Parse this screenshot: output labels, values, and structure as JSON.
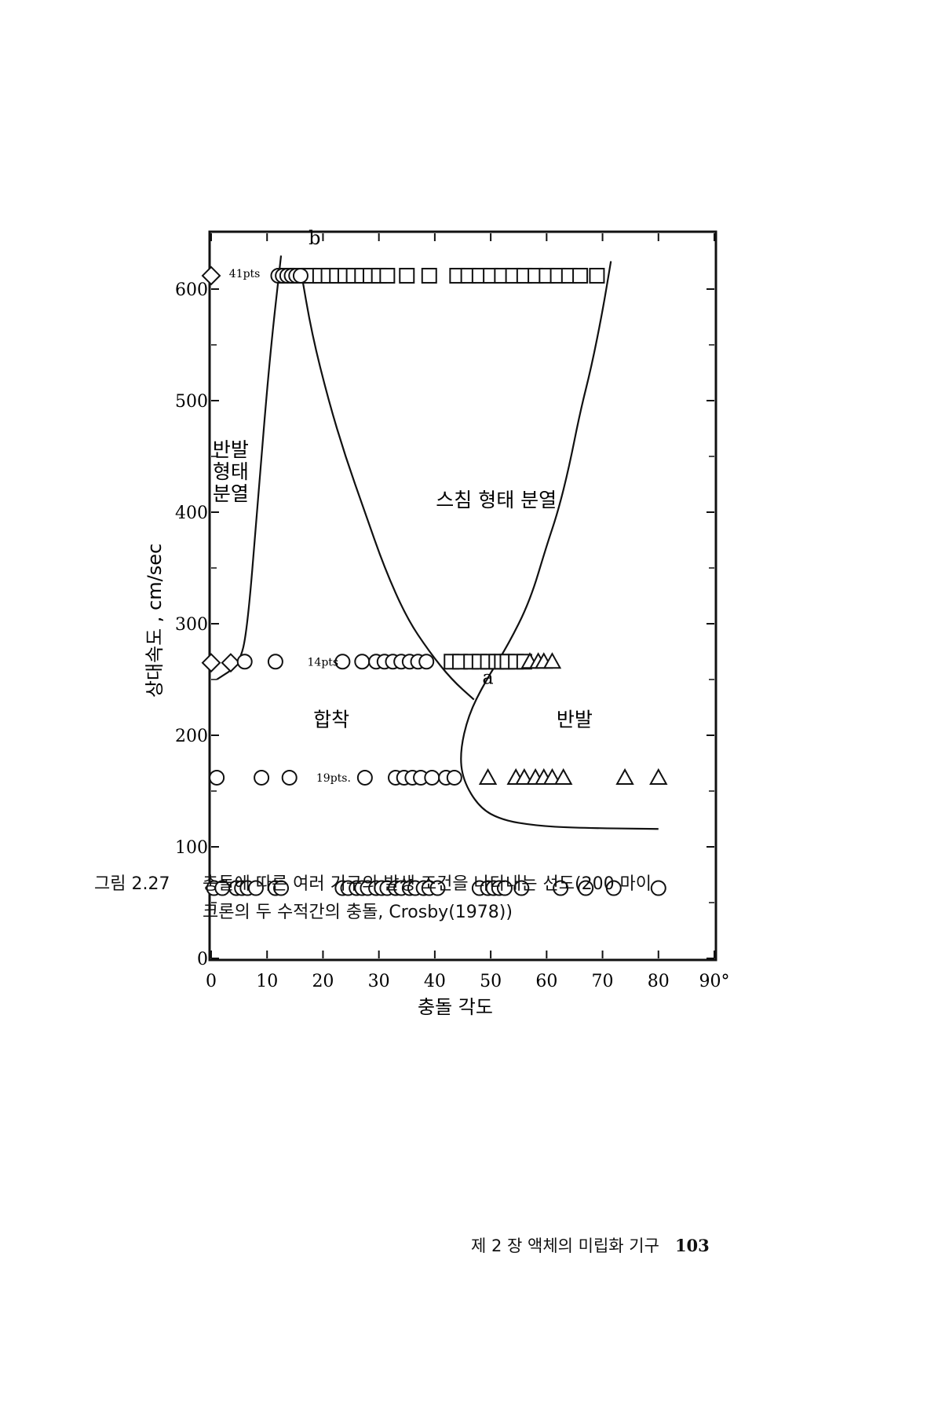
{
  "chart_data": {
    "type": "scatter",
    "xlabel": "충돌 각도",
    "ylabel": "상대속도 , cm/sec",
    "xlim": [
      0,
      90
    ],
    "ylim": [
      0,
      650
    ],
    "x_ticks": [
      "0",
      "10",
      "20",
      "30",
      "40",
      "50",
      "60",
      "70",
      "80",
      "90°"
    ],
    "y_ticks": [
      "0",
      "100",
      "200",
      "300",
      "400",
      "500",
      "600"
    ],
    "regions": [
      {
        "name": "반발 형태 분열",
        "lines": [
          "반발",
          "형태",
          "분열"
        ],
        "x": 3.5,
        "y": 450
      },
      {
        "name": "스침 형태 분열",
        "lines": [
          "스침 형태 분열"
        ],
        "x": 51,
        "y": 405
      },
      {
        "name": "합착",
        "lines": [
          "합착"
        ],
        "x": 21.5,
        "y": 208
      },
      {
        "name": "반발",
        "lines": [
          "반발"
        ],
        "x": 65,
        "y": 208
      }
    ],
    "point_labels": [
      {
        "text": "b",
        "x": 18.5,
        "y": 640
      },
      {
        "text": "a",
        "x": 49.5,
        "y": 246
      }
    ],
    "annotations": [
      {
        "text": "41pts",
        "x": 3.2,
        "y": 614
      },
      {
        "text": "14pts",
        "x": 17.2,
        "y": 266
      },
      {
        "text": "19pts.",
        "x": 18.8,
        "y": 162
      }
    ],
    "boundaries": [
      {
        "name": "rebound-fragmentation boundary",
        "points": [
          [
            1,
            250
          ],
          [
            5,
            263
          ],
          [
            6.5,
            295
          ],
          [
            8.5,
            420
          ],
          [
            10.5,
            540
          ],
          [
            12.5,
            630
          ]
        ]
      },
      {
        "name": "b-a boundary",
        "points": [
          [
            16,
            618
          ],
          [
            18,
            560
          ],
          [
            21,
            500
          ],
          [
            24,
            450
          ],
          [
            27.5,
            400
          ],
          [
            31,
            350
          ],
          [
            35,
            305
          ],
          [
            39,
            275
          ],
          [
            43,
            250
          ],
          [
            47,
            232
          ]
        ]
      },
      {
        "name": "a-right boundary",
        "points": [
          [
            71.5,
            625
          ],
          [
            70,
            580
          ],
          [
            68,
            530
          ],
          [
            66,
            490
          ],
          [
            64,
            440
          ],
          [
            62,
            400
          ],
          [
            60,
            370
          ],
          [
            57,
            320
          ],
          [
            53,
            280
          ],
          [
            49,
            248
          ],
          [
            46,
            218
          ],
          [
            44.5,
            185
          ],
          [
            45,
            160
          ],
          [
            48,
            135
          ],
          [
            52,
            124
          ],
          [
            58,
            119
          ],
          [
            65,
            117
          ],
          [
            80,
            116
          ]
        ]
      }
    ],
    "series": [
      {
        "marker": "diamond",
        "x": [
          0,
          0,
          3.5
        ],
        "y": [
          612,
          265,
          265
        ]
      },
      {
        "marker": "square",
        "x": [
          13.5,
          15.5,
          17.5,
          19.5,
          21,
          22.5,
          24,
          25.5,
          27,
          28.5,
          30,
          31.5,
          35,
          39,
          44,
          46,
          48,
          50,
          52,
          54,
          56,
          58,
          60,
          62,
          64,
          66,
          69
        ],
        "y": [
          612,
          612,
          612,
          612,
          612,
          612,
          612,
          612,
          612,
          612,
          612,
          612,
          612,
          612,
          612,
          612,
          612,
          612,
          612,
          612,
          612,
          612,
          612,
          612,
          612,
          612,
          612
        ]
      },
      {
        "marker": "circle",
        "x": [
          12,
          12.8,
          13.6,
          14.4,
          15.2,
          16
        ],
        "y": [
          612,
          612,
          612,
          612,
          612,
          612
        ]
      },
      {
        "marker": "circle",
        "x": [
          6,
          11.5,
          23.5,
          27,
          29.5,
          31,
          32.5,
          34,
          35.5,
          37,
          38.5
        ],
        "y": [
          266,
          266,
          266,
          266,
          266,
          266,
          266,
          266,
          266,
          266,
          266
        ]
      },
      {
        "marker": "square",
        "x": [
          43,
          44.5,
          46.5,
          48,
          49.5,
          51,
          52,
          53,
          54.5,
          56
        ],
        "y": [
          266,
          266,
          266,
          266,
          266,
          266,
          266,
          266,
          266,
          266
        ]
      },
      {
        "marker": "triangle",
        "x": [
          57,
          58.5,
          59.5,
          61
        ],
        "y": [
          266,
          266,
          266,
          266
        ]
      },
      {
        "marker": "circle",
        "x": [
          1,
          9,
          14,
          27.5,
          33,
          34.5,
          36,
          37.5,
          39.5,
          42,
          43.5
        ],
        "y": [
          162,
          162,
          162,
          162,
          162,
          162,
          162,
          162,
          162,
          162,
          162
        ]
      },
      {
        "marker": "triangle",
        "x": [
          49.5,
          54.5,
          56,
          58,
          59.5,
          61,
          63,
          74,
          80
        ],
        "y": [
          162,
          162,
          162,
          162,
          162,
          162,
          162,
          162,
          162
        ]
      },
      {
        "marker": "circle",
        "x": [
          0.5,
          2,
          4.5,
          5.5,
          6.5,
          8,
          11.5,
          12.5,
          23.5,
          24.5,
          26,
          27,
          28,
          29.5,
          30.5,
          31.5,
          33,
          34,
          35.5,
          36.5,
          38,
          39,
          40.5,
          48,
          49.5,
          50.5,
          51.5,
          52.5,
          55.5,
          62.5,
          67,
          72,
          80
        ],
        "y": [
          63,
          63,
          63,
          63,
          63,
          63,
          63,
          63,
          63,
          63,
          63,
          63,
          63,
          63,
          63,
          63,
          63,
          63,
          63,
          63,
          63,
          63,
          63,
          63,
          63,
          63,
          63,
          63,
          63,
          63,
          63,
          63,
          63
        ]
      }
    ]
  },
  "caption": {
    "label": "그림 2.27",
    "line1": "충돌에 따른 여러 기구의 발생 조건을 나타내는 선도(200 마이",
    "line2": "크론의 두 수적간의 충돌, Crosby(1978))"
  },
  "footer": {
    "chapter": "제 2 장 액체의 미립화 기구",
    "page": "103"
  }
}
